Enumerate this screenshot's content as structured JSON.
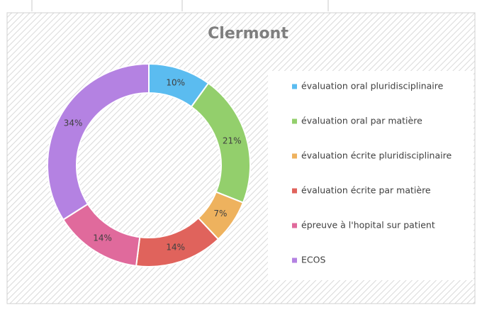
{
  "chart_data": {
    "type": "donut",
    "title": "Clermont",
    "categories": [
      "évaluation oral pluridisciplinaire",
      "évaluation oral par matière",
      "évaluation écrite pluridisciplinaire",
      "évaluation écrite par matière",
      "épreuve à l'hopital sur patient",
      "ECOS"
    ],
    "values": [
      10,
      21,
      7,
      14,
      14,
      34
    ],
    "value_labels": [
      "10%",
      "21%",
      "7%",
      "14%",
      "14%",
      "34%"
    ],
    "colors": [
      "#5bbcf0",
      "#93cf6c",
      "#eeb25e",
      "#e0635c",
      "#e06a9c",
      "#b482e2"
    ],
    "legend": "right"
  }
}
